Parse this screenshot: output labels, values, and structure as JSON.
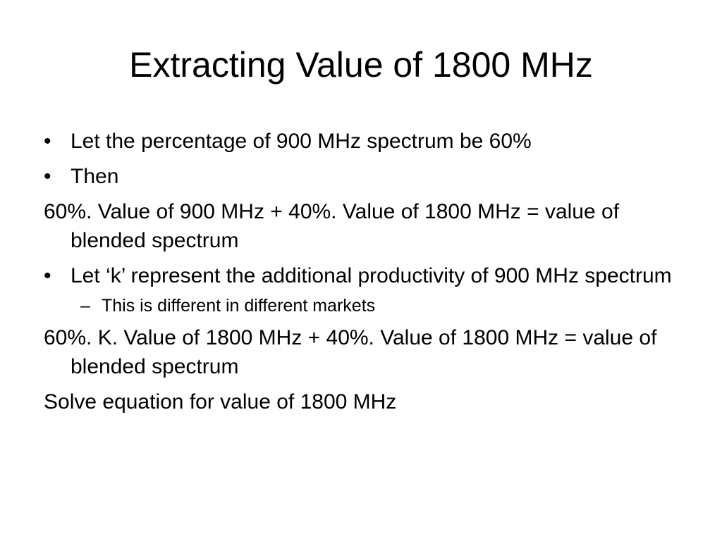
{
  "slide": {
    "title": "Extracting Value of 1800 MHz",
    "paragraphs": [
      {
        "kind": "bullet",
        "text": "Let the percentage of 900 MHz spectrum be 60%"
      },
      {
        "kind": "bullet",
        "text": "Then"
      },
      {
        "kind": "plain",
        "text": "60%. Value of 900 MHz + 40%. Value of 1800 MHz = value of blended spectrum"
      },
      {
        "kind": "bullet",
        "text": "Let ‘k’ represent the additional productivity of 900 MHz spectrum"
      },
      {
        "kind": "sub",
        "text": "This is different in different markets"
      },
      {
        "kind": "plain",
        "text": "60%. K. Value of 1800 MHz + 40%. Value of 1800 MHz = value of blended spectrum"
      },
      {
        "kind": "plain",
        "text": "Solve equation for value of 1800 MHz"
      }
    ]
  }
}
